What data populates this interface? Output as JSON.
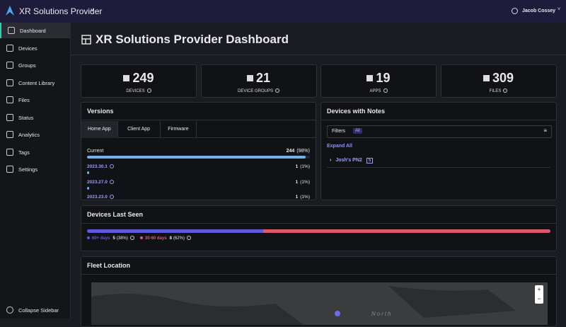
{
  "header": {
    "app_name": "XR Solutions Provider",
    "user": "Jacob Cossey"
  },
  "sidebar": {
    "items": [
      "Dashboard",
      "Devices",
      "Groups",
      "Content Library",
      "Files",
      "Status",
      "Analytics",
      "Tags",
      "Settings"
    ],
    "active": 0,
    "collapse": "Collapse Sidebar"
  },
  "title": "XR Solutions Provider Dashboard",
  "stats": [
    {
      "value": 249,
      "label": "DEVICES"
    },
    {
      "value": 21,
      "label": "DEVICE GROUPS"
    },
    {
      "value": 19,
      "label": "APPS"
    },
    {
      "value": 309,
      "label": "FILES"
    }
  ],
  "versions": {
    "title": "Versions",
    "tabs": [
      "Home App",
      "Client App",
      "Firmware"
    ],
    "active_tab": 0,
    "current": {
      "label": "Current",
      "count": 244,
      "percent": 98,
      "percent_label": "(98%)"
    },
    "rows": [
      {
        "label": "2023.30.1",
        "count": 1,
        "percent": 1,
        "percent_label": "(1%)"
      },
      {
        "label": "2023.27.0",
        "count": 1,
        "percent": 1,
        "percent_label": "(1%)"
      },
      {
        "label": "2023.23.0",
        "count": 1,
        "percent": 1,
        "percent_label": "(1%)"
      }
    ]
  },
  "notes": {
    "title": "Devices with Notes",
    "filters": "Filters",
    "filter_tag": "All",
    "expand": "Expand All",
    "items": [
      {
        "name": "Josh's PN2",
        "count": 5
      }
    ]
  },
  "last_seen": {
    "title": "Devices Last Seen",
    "segments": [
      {
        "label": "60+ days",
        "count": 5,
        "percent": 38,
        "percent_label": "(38%)",
        "color": "#5b5bdc"
      },
      {
        "label": "30-60 days",
        "count": 8,
        "percent": 62,
        "percent_label": "(62%)",
        "color": "#d95a6c"
      }
    ]
  },
  "fleet": {
    "title": "Fleet Location",
    "map_label": "North",
    "zoom_in": "+",
    "zoom_out": "−"
  }
}
